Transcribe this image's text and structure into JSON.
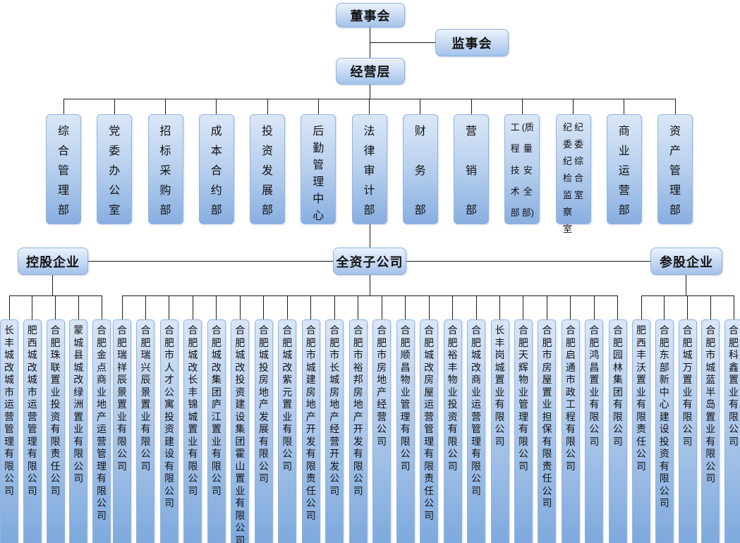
{
  "org": {
    "board": "董事会",
    "supervisory": "监事会",
    "management": "经营层",
    "departments": [
      {
        "label": "综合管理部"
      },
      {
        "label": "党委办公室"
      },
      {
        "label": "招标采购部"
      },
      {
        "label": "成本合约部"
      },
      {
        "label": "投资发展部"
      },
      {
        "label": "后勤管理中心"
      },
      {
        "label": "法律审计部"
      },
      {
        "label": "财务部"
      },
      {
        "label": "营销部"
      },
      {
        "cols": [
          "工程技术部",
          "(质量安全部)"
        ]
      },
      {
        "cols": [
          "纪委纪检监察室",
          "纪委综合室"
        ]
      },
      {
        "label": "商业运营部"
      },
      {
        "label": "资产管理部"
      }
    ],
    "groups": [
      {
        "label": "控股企业",
        "companies": [
          "长丰城改城市运营管理有限公司",
          "肥西城改城市运营管理有限公司",
          "合肥珠联置业投资有限责任公司",
          "蒙城县城改绿洲置业有限公司",
          "合肥金点商业地产运营管理有限公司"
        ]
      },
      {
        "label": "全资子公司",
        "companies": [
          "合肥瑞祥辰景置业有限公司",
          "合肥瑞兴辰景置业有限公司",
          "合肥市人才公寓投资建设有限公司",
          "合肥城改长丰锦城置业有限公司",
          "合肥城改集团庐江置业有限公司",
          "合肥城改投资建设集团霍山置业有限公司",
          "合肥城投房地产发展有限公司",
          "合肥城改紫元置业有限公司",
          "合肥市城建房地产开发有限责任公司",
          "合肥市长城房地产经营开发公司",
          "合肥市裕邦房地产开发有限公司",
          "合肥市房地产经营公司",
          "合肥顺昌物业管理有限公司",
          "合肥城改房屋运营管理有限责任公司",
          "合肥裕丰物业投资有限公司",
          "合肥城改商业运营管理有限公司",
          "长丰岗城置业有限公司",
          "合肥天辉物业管理有限公司",
          "合肥市房屋置业担保有限责任公司",
          "合肥启通市政工程有限公司",
          "合肥鸿昌置业有限公司",
          "合肥园林集团有限公司"
        ]
      },
      {
        "label": "参股企业",
        "companies": [
          "肥西丰沃置业有限责任公司",
          "合肥东部新中心建设投资有限公司",
          "合肥城万置业有限公司",
          "合肥市城蓝半岛置业有限公司",
          "合肥科鑫置业有限公司"
        ]
      }
    ],
    "colors": {
      "box_gradient_top": "#dae7f7",
      "box_gradient_bottom": "#7ea9dd",
      "box_border": "#93b4e0",
      "connector_line": "#1a1a1a"
    }
  }
}
